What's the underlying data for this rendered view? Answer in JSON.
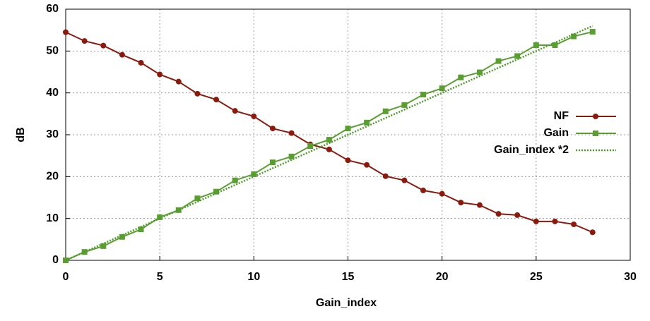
{
  "chart_data": {
    "type": "line",
    "x_label": "Gain_index",
    "y_label": "dB",
    "x": [
      0,
      1,
      2,
      3,
      4,
      5,
      6,
      7,
      8,
      9,
      10,
      11,
      12,
      13,
      14,
      15,
      16,
      17,
      18,
      19,
      20,
      21,
      22,
      23,
      24,
      25,
      26,
      27,
      28
    ],
    "series": [
      {
        "name": "NF",
        "color": "#8b1a0e",
        "marker": "circle",
        "line_style": "solid",
        "values": [
          54.5,
          52.4,
          51.3,
          49.1,
          47.2,
          44.4,
          42.7,
          39.8,
          38.4,
          35.7,
          34.4,
          31.5,
          30.4,
          27.7,
          26.5,
          23.9,
          22.8,
          20.1,
          19.1,
          16.7,
          15.9,
          13.8,
          13.2,
          11.1,
          10.8,
          9.3,
          9.3,
          8.6,
          6.7
        ]
      },
      {
        "name": "Gain",
        "color": "#5a9e32",
        "marker": "square",
        "line_style": "solid",
        "values": [
          0,
          2.0,
          3.4,
          5.6,
          7.4,
          10.3,
          12.0,
          14.8,
          16.4,
          19.1,
          20.6,
          23.4,
          24.8,
          27.3,
          28.8,
          31.5,
          32.9,
          35.6,
          37.1,
          39.6,
          41.1,
          43.7,
          44.9,
          47.6,
          48.8,
          51.4,
          51.4,
          53.5,
          54.6
        ]
      },
      {
        "name": "Gain_index *2",
        "color": "#4e9a2a",
        "marker": "none",
        "line_style": "dotted",
        "values": [
          0,
          2,
          4,
          6,
          8,
          10,
          12,
          14,
          16,
          18,
          20,
          22,
          24,
          26,
          28,
          30,
          32,
          34,
          36,
          38,
          40,
          42,
          44,
          46,
          48,
          50,
          52,
          54,
          56
        ]
      }
    ],
    "xlim": [
      0,
      30
    ],
    "xticks": [
      0,
      5,
      10,
      15,
      20,
      25,
      30
    ],
    "ylim": [
      0,
      60
    ],
    "yticks": [
      0,
      10,
      20,
      30,
      40,
      50,
      60
    ],
    "grid": true,
    "legend": "right"
  }
}
